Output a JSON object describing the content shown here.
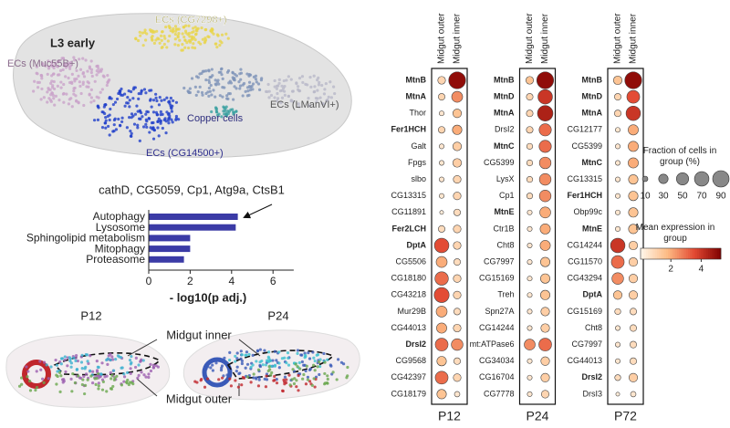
{
  "figure": {
    "umap": {
      "title": "L3 early",
      "labels": [
        "ECs (CG7298+)",
        "ECs (Muc55B+)",
        "Copper cells",
        "ECs (LManVI+)",
        "ECs (CG14500+)"
      ]
    },
    "tissue": {
      "stages": [
        "P12",
        "P24"
      ],
      "labels": [
        "Midgut inner",
        "Midgut outer"
      ]
    },
    "dotplot_legend": {
      "size_title": "Fraction of cells in group (%)",
      "sizes": [
        10,
        30,
        50,
        70,
        90
      ],
      "color_title": "Mean expression in group",
      "color_ticks": [
        2,
        4
      ],
      "color_lim": [
        0,
        5.3
      ],
      "colormap": [
        "#fff7ec",
        "#fdbb84",
        "#e34a33",
        "#7f0000"
      ]
    }
  },
  "chart_data": [
    {
      "type": "bar",
      "orientation": "horizontal",
      "annotation": "cathD, CG5059, Cp1, Atg9a, CtsB1",
      "categories": [
        "Autophagy",
        "Lysosome",
        "Sphingolipid metabolism",
        "Mitophagy",
        "Proteasome"
      ],
      "values": [
        4.3,
        4.2,
        2.0,
        2.0,
        1.7
      ],
      "color": "#3b3ba6",
      "xlabel": "- log10(p adj.)",
      "xlim": [
        0,
        7
      ],
      "xticks": [
        0,
        2,
        4,
        6
      ]
    },
    {
      "type": "dotplot",
      "title": "P12",
      "categories": [
        "MtnB",
        "MtnA",
        "Thor",
        "Fer1HCH",
        "Galt",
        "Fpgs",
        "slbo",
        "CG13315",
        "CG11891",
        "Fer2LCH",
        "DptA",
        "CG5506",
        "CG18180",
        "CG43218",
        "Mur29B",
        "CG44013",
        "DrsI2",
        "CG9568",
        "CG42397",
        "CG18179"
      ],
      "bold": [
        true,
        true,
        false,
        true,
        false,
        false,
        false,
        false,
        false,
        true,
        true,
        false,
        false,
        false,
        false,
        false,
        true,
        false,
        false,
        false
      ],
      "series": [
        {
          "name": "Midgut outer",
          "values": [
            1,
            1,
            0.5,
            1,
            0.5,
            0.5,
            0.5,
            0.5,
            0.3,
            0.8,
            3.5,
            2,
            3,
            3.5,
            2,
            2,
            3,
            1.5,
            3,
            1.5
          ],
          "sizes": [
            20,
            15,
            8,
            15,
            8,
            8,
            8,
            8,
            5,
            15,
            70,
            40,
            60,
            75,
            40,
            35,
            55,
            30,
            55,
            30
          ]
        },
        {
          "name": "Midgut inner",
          "values": [
            5,
            2.5,
            1.5,
            2,
            1.2,
            1.2,
            1,
            1,
            0.8,
            1,
            1,
            0.8,
            1,
            1,
            0.8,
            1,
            2.5,
            0.8,
            1,
            0.5
          ],
          "sizes": [
            95,
            40,
            25,
            30,
            25,
            25,
            20,
            20,
            15,
            20,
            20,
            15,
            20,
            20,
            15,
            20,
            45,
            15,
            20,
            10
          ]
        }
      ]
    },
    {
      "type": "dotplot",
      "title": "P24",
      "categories": [
        "MtnB",
        "MtnD",
        "MtnA",
        "DrsI2",
        "MtnC",
        "CG5399",
        "LysX",
        "Cp1",
        "MtnE",
        "Ctr1B",
        "Cht8",
        "CG7997",
        "CG15169",
        "Treh",
        "Spn27A",
        "CG14244",
        "mt:ATPase6",
        "CG34034",
        "CG16704",
        "CG7778"
      ],
      "bold": [
        true,
        true,
        true,
        false,
        true,
        false,
        false,
        false,
        true,
        false,
        false,
        false,
        false,
        false,
        false,
        false,
        false,
        false,
        false,
        false
      ],
      "series": [
        {
          "name": "Midgut outer",
          "values": [
            1.5,
            1,
            1,
            1,
            0.8,
            0.8,
            0.8,
            0.8,
            0.5,
            0.5,
            0.5,
            0.5,
            0.5,
            0.5,
            0.5,
            0.5,
            2.5,
            0.5,
            0.5,
            0.5
          ],
          "sizes": [
            20,
            15,
            15,
            15,
            12,
            12,
            12,
            12,
            8,
            8,
            8,
            8,
            8,
            8,
            8,
            8,
            40,
            8,
            8,
            8
          ]
        },
        {
          "name": "Midgut inner",
          "values": [
            5,
            4,
            4.5,
            3,
            3,
            2.5,
            2.5,
            2.5,
            2,
            2,
            2,
            1.5,
            1.5,
            1.5,
            1.2,
            1.2,
            3,
            1.2,
            1.2,
            1
          ],
          "sizes": [
            95,
            70,
            80,
            50,
            50,
            45,
            45,
            45,
            40,
            35,
            35,
            30,
            30,
            30,
            25,
            25,
            55,
            25,
            25,
            20
          ]
        }
      ]
    },
    {
      "type": "dotplot",
      "title": "P72",
      "categories": [
        "MtnB",
        "MtnD",
        "MtnA",
        "CG12177",
        "CG5399",
        "MtnC",
        "CG13315",
        "Fer1HCH",
        "Obp99c",
        "MtnE",
        "CG14244",
        "CG11570",
        "CG43294",
        "DptA",
        "CG15169",
        "Cht8",
        "CG7997",
        "CG44013",
        "DrsI2",
        "DrsI3"
      ],
      "bold": [
        true,
        true,
        true,
        false,
        false,
        true,
        false,
        true,
        false,
        true,
        false,
        false,
        false,
        true,
        false,
        false,
        false,
        false,
        true,
        false
      ],
      "series": [
        {
          "name": "Midgut outer",
          "values": [
            1.5,
            1,
            1,
            0.5,
            0.5,
            0.5,
            0.5,
            0.5,
            0.5,
            0.5,
            4,
            3,
            2.5,
            1.5,
            0.8,
            0.5,
            0.5,
            0.5,
            0.8,
            0.3
          ],
          "sizes": [
            25,
            15,
            15,
            8,
            8,
            8,
            8,
            8,
            8,
            8,
            70,
            55,
            45,
            25,
            12,
            8,
            8,
            8,
            12,
            5
          ]
        },
        {
          "name": "Midgut inner",
          "values": [
            5,
            3.5,
            4,
            2,
            2,
            2,
            1.5,
            1.5,
            1.5,
            1.5,
            1.2,
            1.2,
            1.2,
            1.2,
            0.8,
            0.8,
            0.8,
            0.8,
            1.2,
            0.5
          ],
          "sizes": [
            95,
            55,
            70,
            35,
            35,
            35,
            30,
            30,
            30,
            30,
            25,
            25,
            25,
            25,
            15,
            15,
            15,
            15,
            25,
            10
          ]
        }
      ]
    }
  ]
}
